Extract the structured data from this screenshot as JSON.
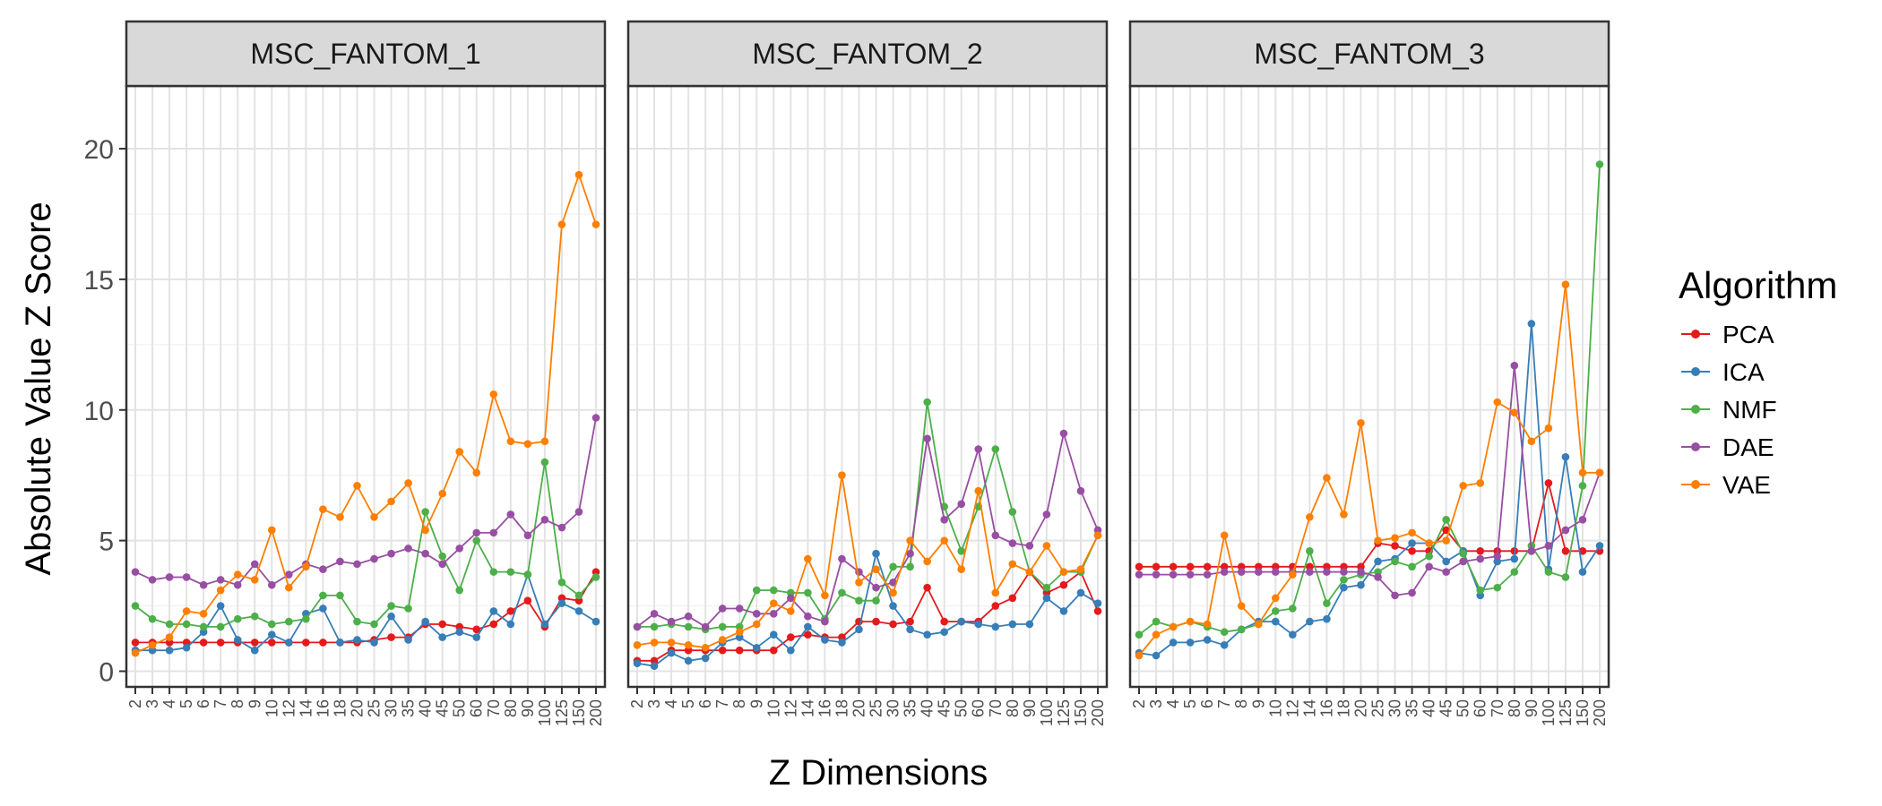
{
  "chart_data": {
    "type": "line",
    "xlabel": "Z Dimensions",
    "ylabel": "Absolute Value Z Score",
    "ylim": [
      -0.6,
      22.4
    ],
    "yticks": [
      0,
      5,
      10,
      15,
      20
    ],
    "grid": true,
    "legend_title": "Algorithm",
    "legend_position": "right",
    "categories": [
      "2",
      "3",
      "4",
      "5",
      "6",
      "7",
      "8",
      "9",
      "10",
      "12",
      "14",
      "16",
      "18",
      "20",
      "25",
      "30",
      "35",
      "40",
      "45",
      "50",
      "60",
      "70",
      "80",
      "90",
      "100",
      "125",
      "150",
      "200"
    ],
    "colors": {
      "PCA": "#e41a1c",
      "ICA": "#377eb8",
      "NMF": "#4daf4a",
      "DAE": "#984ea3",
      "VAE": "#ff7f00"
    },
    "panels": [
      {
        "title": "MSC_FANTOM_1",
        "series": [
          {
            "name": "PCA",
            "values": [
              1.1,
              1.1,
              1.1,
              1.1,
              1.1,
              1.1,
              1.1,
              1.1,
              1.1,
              1.1,
              1.1,
              1.1,
              1.1,
              1.1,
              1.2,
              1.3,
              1.3,
              1.8,
              1.8,
              1.7,
              1.6,
              1.8,
              2.3,
              2.7,
              1.7,
              2.8,
              2.7,
              3.8
            ]
          },
          {
            "name": "ICA",
            "values": [
              0.8,
              0.8,
              0.8,
              0.9,
              1.5,
              2.5,
              1.2,
              0.8,
              1.4,
              1.1,
              2.2,
              2.4,
              1.1,
              1.2,
              1.1,
              2.1,
              1.2,
              1.9,
              1.3,
              1.5,
              1.3,
              2.3,
              1.8,
              3.7,
              1.8,
              2.6,
              2.3,
              1.9
            ]
          },
          {
            "name": "NMF",
            "values": [
              2.5,
              2.0,
              1.8,
              1.8,
              1.7,
              1.7,
              2.0,
              2.1,
              1.8,
              1.9,
              2.0,
              2.9,
              2.9,
              1.9,
              1.8,
              2.5,
              2.4,
              6.1,
              4.4,
              3.1,
              5.0,
              3.8,
              3.8,
              3.7,
              8.0,
              3.4,
              2.9,
              3.6
            ]
          },
          {
            "name": "DAE",
            "values": [
              3.8,
              3.5,
              3.6,
              3.6,
              3.3,
              3.5,
              3.3,
              4.1,
              3.3,
              3.7,
              4.1,
              3.9,
              4.2,
              4.1,
              4.3,
              4.5,
              4.7,
              4.5,
              4.1,
              4.7,
              5.3,
              5.3,
              6.0,
              5.2,
              5.8,
              5.5,
              6.1,
              9.7
            ]
          },
          {
            "name": "VAE",
            "values": [
              0.7,
              1.0,
              1.3,
              2.3,
              2.2,
              3.1,
              3.7,
              3.5,
              5.4,
              3.2,
              4.0,
              6.2,
              5.9,
              7.1,
              5.9,
              6.5,
              7.2,
              5.4,
              6.8,
              8.4,
              7.6,
              10.6,
              8.8,
              8.7,
              8.8,
              17.1,
              19.0,
              17.1
            ]
          }
        ]
      },
      {
        "title": "MSC_FANTOM_2",
        "series": [
          {
            "name": "PCA",
            "values": [
              0.4,
              0.4,
              0.8,
              0.8,
              0.8,
              0.8,
              0.8,
              0.8,
              0.8,
              1.3,
              1.4,
              1.3,
              1.3,
              1.9,
              1.9,
              1.8,
              1.9,
              3.2,
              1.9,
              1.9,
              1.9,
              2.5,
              2.8,
              3.8,
              3.0,
              3.3,
              3.8,
              2.3
            ]
          },
          {
            "name": "ICA",
            "values": [
              0.3,
              0.2,
              0.7,
              0.4,
              0.5,
              1.1,
              1.3,
              0.9,
              1.4,
              0.8,
              1.7,
              1.2,
              1.1,
              1.6,
              4.5,
              2.5,
              1.6,
              1.4,
              1.5,
              1.9,
              1.8,
              1.7,
              1.8,
              1.8,
              2.8,
              2.3,
              3.0,
              2.6
            ]
          },
          {
            "name": "NMF",
            "values": [
              1.7,
              1.7,
              1.8,
              1.7,
              1.6,
              1.7,
              1.7,
              3.1,
              3.1,
              3.0,
              3.0,
              2.0,
              3.0,
              2.7,
              2.7,
              4.0,
              4.0,
              10.3,
              6.3,
              4.6,
              6.3,
              8.5,
              6.1,
              3.8,
              3.2,
              3.8,
              3.8,
              5.2
            ]
          },
          {
            "name": "DAE",
            "values": [
              1.7,
              2.2,
              1.9,
              2.1,
              1.7,
              2.4,
              2.4,
              2.2,
              2.2,
              2.8,
              2.1,
              1.9,
              4.3,
              3.8,
              3.2,
              3.4,
              4.5,
              8.9,
              5.8,
              6.4,
              8.5,
              5.2,
              4.9,
              4.8,
              6.0,
              9.1,
              6.9,
              5.4
            ]
          },
          {
            "name": "VAE",
            "values": [
              1.0,
              1.1,
              1.1,
              1.0,
              0.9,
              1.2,
              1.5,
              1.8,
              2.6,
              2.3,
              4.3,
              2.9,
              7.5,
              3.4,
              3.9,
              3.0,
              5.0,
              4.2,
              5.0,
              3.9,
              6.9,
              3.0,
              4.1,
              3.8,
              4.8,
              3.8,
              3.9,
              5.2
            ]
          }
        ]
      },
      {
        "title": "MSC_FANTOM_3",
        "series": [
          {
            "name": "PCA",
            "values": [
              4.0,
              4.0,
              4.0,
              4.0,
              4.0,
              4.0,
              4.0,
              4.0,
              4.0,
              4.0,
              4.0,
              4.0,
              4.0,
              4.0,
              4.9,
              4.8,
              4.6,
              4.6,
              5.4,
              4.6,
              4.6,
              4.6,
              4.6,
              4.6,
              7.2,
              4.6,
              4.6,
              4.6
            ]
          },
          {
            "name": "ICA",
            "values": [
              0.7,
              0.6,
              1.1,
              1.1,
              1.2,
              1.0,
              1.6,
              1.9,
              1.9,
              1.4,
              1.9,
              2.0,
              3.2,
              3.3,
              4.2,
              4.3,
              4.9,
              4.9,
              4.2,
              4.6,
              2.9,
              4.2,
              4.3,
              13.3,
              3.9,
              8.2,
              3.8,
              4.8
            ]
          },
          {
            "name": "NMF",
            "values": [
              1.4,
              1.9,
              1.7,
              1.9,
              1.7,
              1.5,
              1.6,
              1.8,
              2.3,
              2.4,
              4.6,
              2.6,
              3.5,
              3.7,
              3.8,
              4.2,
              4.0,
              4.4,
              5.8,
              4.5,
              3.1,
              3.2,
              3.8,
              4.8,
              3.8,
              3.6,
              7.1,
              19.4
            ]
          },
          {
            "name": "DAE",
            "values": [
              3.7,
              3.7,
              3.7,
              3.7,
              3.7,
              3.8,
              3.8,
              3.8,
              3.8,
              3.8,
              3.8,
              3.8,
              3.8,
              3.8,
              3.6,
              2.9,
              3.0,
              4.0,
              3.8,
              4.2,
              4.3,
              4.4,
              11.7,
              4.6,
              4.8,
              5.4,
              5.8,
              7.6
            ]
          },
          {
            "name": "VAE",
            "values": [
              0.6,
              1.4,
              1.7,
              1.9,
              1.8,
              5.2,
              2.5,
              1.8,
              2.8,
              3.7,
              5.9,
              7.4,
              6.0,
              9.5,
              5.0,
              5.1,
              5.3,
              4.9,
              5.0,
              7.1,
              7.2,
              10.3,
              9.9,
              8.8,
              9.3,
              14.8,
              7.6,
              7.6
            ]
          }
        ]
      }
    ]
  }
}
